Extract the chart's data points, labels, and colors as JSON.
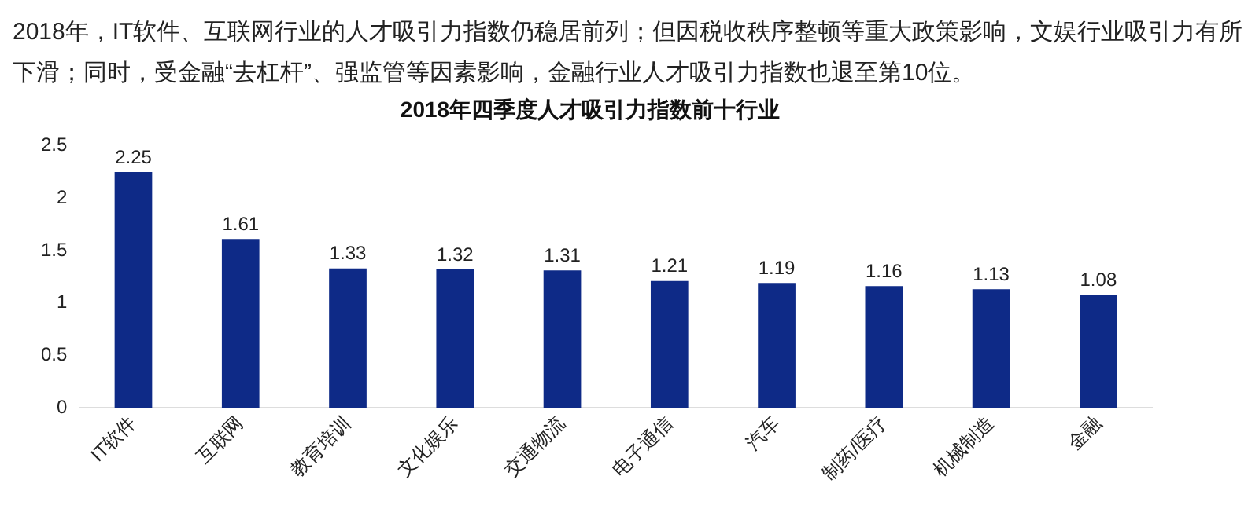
{
  "chart_data": {
    "type": "bar",
    "subtitle": "2018年，IT软件、互联网行业的人才吸引力指数仍稳居前列；但因税收秩序整顿等重大政策影响，文娱行业吸引力有所下滑；同时，受金融“去杠杆”、强监管等因素影响，金融行业人才吸引力指数也退至第10位。",
    "title": "2018年四季度人才吸引力指数前十行业",
    "categories": [
      "IT软件",
      "互联网",
      "教育培训",
      "文化娱乐",
      "交通物流",
      "电子通信",
      "汽车",
      "制药/医疗",
      "机械制造",
      "金融"
    ],
    "values": [
      2.25,
      1.61,
      1.33,
      1.32,
      1.31,
      1.21,
      1.19,
      1.16,
      1.13,
      1.08
    ],
    "color": "#0e2a87",
    "ylim": [
      0,
      2.5
    ],
    "yticks": [
      0,
      0.5,
      1,
      1.5,
      2,
      2.5
    ],
    "data_labels": true,
    "grid": false,
    "legend": false
  }
}
